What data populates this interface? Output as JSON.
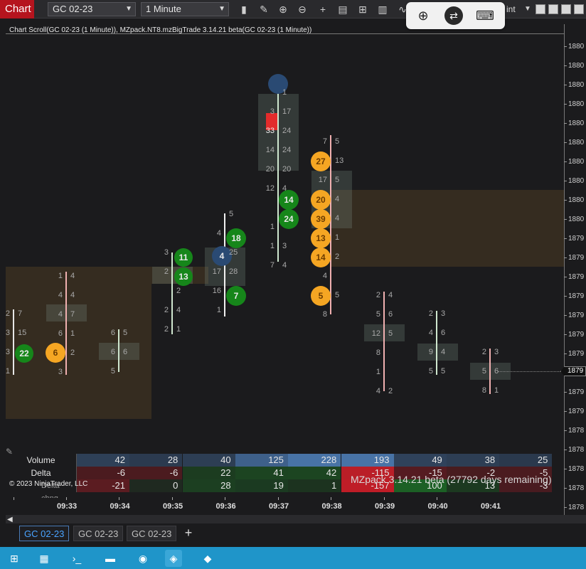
{
  "window": {
    "title": "Chart"
  },
  "toolbar": {
    "instrument": "GC 02-23",
    "interval": "1 Minute",
    "icons": [
      "bars-icon",
      "pencil-icon",
      "zoom-in-icon",
      "zoom-out-icon",
      "crosshair-icon",
      "properties-icon",
      "templates-icon",
      "indicators-icon",
      "strategies-icon"
    ],
    "hidden_text": "int"
  },
  "viewer_toolbar": {
    "icons": [
      "magnify-icon",
      "remote-icon",
      "keyboard-icon"
    ]
  },
  "chart_title": "Chart Scroll(GC 02-23 (1 Minute)), MZpack.NT8.mzBigTrade 3.14.21 beta(GC 02-23 (1 Minute))",
  "price_axis": {
    "ticks": [
      "1880",
      "1880",
      "1880",
      "1880",
      "1880",
      "1880",
      "1880",
      "1880",
      "1880",
      "1880",
      "1879",
      "1879",
      "1879",
      "1879",
      "1879",
      "1879",
      "1879",
      "1879",
      "1879",
      "1879",
      "1878",
      "1878",
      "1878",
      "1878",
      "1878"
    ],
    "last_price": "1879"
  },
  "time_axis": [
    "09:33",
    "09:34",
    "09:35",
    "09:36",
    "09:37",
    "09:38",
    "09:39",
    "09:40",
    "09:41"
  ],
  "stats": {
    "labels": [
      "Volume",
      "Delta",
      "Delta chng"
    ],
    "volume": [
      "42",
      "28",
      "40",
      "125",
      "228",
      "193",
      "49",
      "38",
      "25"
    ],
    "delta": [
      "-6",
      "-6",
      "22",
      "41",
      "42",
      "-115",
      "-15",
      "-2",
      "-5"
    ],
    "delta_change": [
      "-21",
      "0",
      "28",
      "19",
      "1",
      "-157",
      "100",
      "13",
      "-3"
    ]
  },
  "footer": {
    "copyright": "© 2023 NinjaTrader, LLC",
    "mzpack": "MZpack 3.14.21 beta  (27792 days remaining)"
  },
  "tabs": [
    "GC 02-23",
    "GC 02-23",
    "GC 02-23"
  ],
  "add_tab_label": "+",
  "footprint": {
    "bars": [
      {
        "levels": [
          [
            "2",
            "7"
          ],
          [
            "3",
            "15"
          ],
          [
            "3",
            "22"
          ],
          [
            "1",
            ""
          ]
        ]
      },
      {
        "levels": [
          [
            "1",
            "4"
          ],
          [
            "4",
            "4"
          ],
          [
            "4",
            "7"
          ],
          [
            "6",
            "1"
          ],
          [
            "6",
            "2"
          ],
          [
            "3",
            ""
          ]
        ]
      },
      {
        "levels": [
          [
            "6",
            "5"
          ],
          [
            "6",
            "6"
          ],
          [
            "5",
            ""
          ]
        ]
      },
      {
        "levels": [
          [
            "3",
            "11"
          ],
          [
            "2",
            "13"
          ],
          [
            "",
            "2"
          ],
          [
            "2",
            "4"
          ],
          [
            "2",
            "1"
          ]
        ]
      },
      {
        "levels": [
          [
            "",
            "5"
          ],
          [
            "4",
            "18"
          ],
          [
            "4",
            "25"
          ],
          [
            "17",
            "28"
          ],
          [
            "16",
            "7"
          ],
          [
            "1",
            ""
          ]
        ]
      },
      {
        "levels": [
          [
            "",
            "1"
          ],
          [
            "3",
            "17"
          ],
          [
            "33",
            "24"
          ],
          [
            "14",
            "24"
          ],
          [
            "20",
            "20"
          ],
          [
            "12",
            "4"
          ],
          [
            "",
            "14"
          ],
          [
            "1",
            "24"
          ],
          [
            "1",
            "3"
          ],
          [
            "7",
            "4"
          ]
        ]
      },
      {
        "levels": [
          [
            "7",
            "5"
          ],
          [
            "27",
            "13"
          ],
          [
            "17",
            "5"
          ],
          [
            "20",
            "4"
          ],
          [
            "39",
            "4"
          ],
          [
            "13",
            "1"
          ],
          [
            "14",
            "2"
          ],
          [
            "4",
            ""
          ],
          [
            "5",
            "5"
          ],
          [
            "8",
            ""
          ]
        ]
      },
      {
        "levels": [
          [
            "2",
            "4"
          ],
          [
            "5",
            "6"
          ],
          [
            "12",
            "5"
          ],
          [
            "8",
            ""
          ],
          [
            "1",
            ""
          ],
          [
            "4",
            "2"
          ]
        ]
      },
      {
        "levels": [
          [
            "2",
            "3"
          ],
          [
            "4",
            "6"
          ],
          [
            "9",
            "4"
          ],
          [
            "5",
            "5"
          ]
        ]
      },
      {
        "levels": [
          [
            "2",
            "3"
          ],
          [
            "5",
            "6"
          ],
          [
            "8",
            "1"
          ]
        ]
      }
    ]
  }
}
